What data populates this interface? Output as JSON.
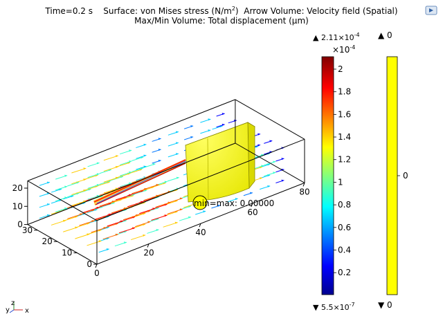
{
  "header": {
    "time_label": "Time=0.2 s",
    "surface_label": "Surface: von Mises stress (N/m",
    "surface_unit_sup": "2",
    "surface_close": ")",
    "arrow_label": "Arrow Volume: Velocity field (Spatial)",
    "maxmin_label": "Max/Min Volume: Total displacement (μm)"
  },
  "colors": {
    "box_edge": "#000000",
    "structure_fill": "#ffff00",
    "structure_edge": "#8a8a00",
    "colorbar_stops": [
      "#00008f",
      "#0000ff",
      "#00ffff",
      "#ffff00",
      "#ff0000",
      "#800000"
    ],
    "displacement_bar": "#ffff00"
  },
  "annotations": {
    "min_max_text": "min=max: 0.00000"
  },
  "chart_data": {
    "type": "3d-surface-arrow-volume",
    "time": "0.2 s",
    "axes": {
      "x": {
        "ticks": [
          "0",
          "20",
          "40",
          "60",
          "80"
        ],
        "range": [
          0,
          80
        ]
      },
      "y": {
        "ticks": [
          "0",
          "10",
          "20",
          "30"
        ],
        "range": [
          0,
          35
        ]
      },
      "z": {
        "ticks": [
          "0",
          "10",
          "20"
        ],
        "range": [
          0,
          24
        ]
      }
    },
    "triad": {
      "labels": [
        "y",
        "z",
        "x"
      ]
    },
    "stress_colorbar": {
      "max_prefix": "▲ 2.11×10",
      "max_exp": "-4",
      "scale_prefix": "×10",
      "scale_exp": "-4",
      "ticks": [
        "2",
        "1.8",
        "1.6",
        "1.4",
        "1.2",
        "1",
        "0.8",
        "0.6",
        "0.4",
        "0.2"
      ],
      "tick_values": [
        2,
        1.8,
        1.6,
        1.4,
        1.2,
        1,
        0.8,
        0.6,
        0.4,
        0.2
      ],
      "min_prefix": "▼ 5.5×10",
      "min_exp": "-7",
      "range": [
        0.0055,
        2.11
      ]
    },
    "displacement_colorbar": {
      "max_label": "▲ 0",
      "min_label": "▼ 0",
      "tick": "0",
      "value": 0
    }
  }
}
